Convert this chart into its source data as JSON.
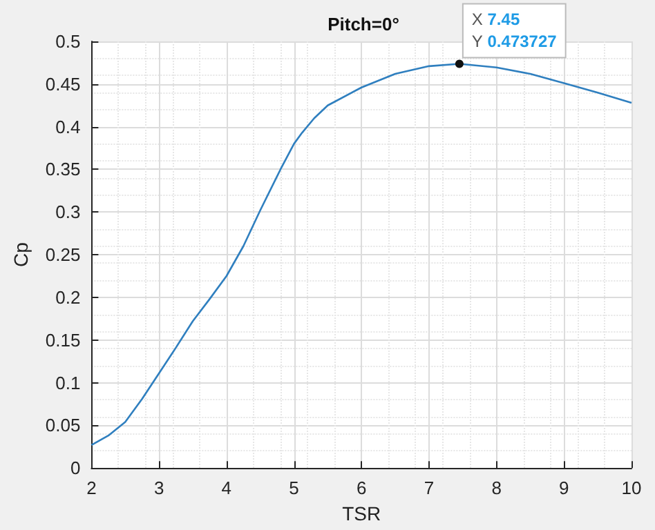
{
  "chart_data": {
    "type": "line",
    "title": "Pitch=0°",
    "xlabel": "TSR",
    "ylabel": "Cp",
    "x": [
      2,
      2.25,
      2.5,
      2.75,
      3,
      3.25,
      3.5,
      3.75,
      4,
      4.25,
      4.5,
      4.8,
      5,
      5.12,
      5.3,
      5.5,
      6,
      6.5,
      7,
      7.45,
      8,
      8.5,
      9,
      9.5,
      10
    ],
    "series": [
      {
        "color": "#2f7fbf",
        "values": [
          0.027,
          0.038,
          0.054,
          0.081,
          0.111,
          0.141,
          0.172,
          0.198,
          0.225,
          0.26,
          0.302,
          0.35,
          0.38,
          0.393,
          0.41,
          0.425,
          0.446,
          0.462,
          0.471,
          0.473727,
          0.4695,
          0.462,
          0.451,
          0.44,
          0.428
        ]
      }
    ],
    "xlim": [
      2,
      10
    ],
    "xticks": [
      2,
      3,
      4,
      5,
      6,
      7,
      8,
      9,
      10
    ],
    "ylim": [
      0,
      0.5
    ],
    "yticks": [
      0,
      0.05,
      0.1,
      0.15,
      0.2,
      0.25,
      0.3,
      0.35,
      0.4,
      0.45,
      0.5
    ],
    "grid": true,
    "marker": "none",
    "line_style": "solid",
    "annotations": [
      {
        "text": "X 7.45\nY 0.473727",
        "x": 7.45,
        "y": 0.473727
      }
    ]
  }
}
